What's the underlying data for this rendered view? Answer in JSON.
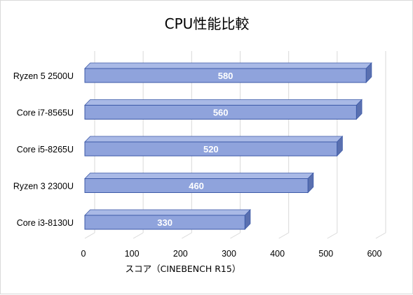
{
  "chart_data": {
    "type": "bar",
    "orientation": "horizontal",
    "style": "3d",
    "title": "CPU性能比較",
    "xlabel": "スコア（CINEBENCH R15）",
    "ylabel": "",
    "categories": [
      "Ryzen 5 2500U",
      "Core i7-8565U",
      "Core i5-8265U",
      "Ryzen 3 2300U",
      "Core i3-8130U"
    ],
    "values": [
      580,
      560,
      520,
      460,
      330
    ],
    "data_labels": [
      "580",
      "560",
      "520",
      "460",
      "330"
    ],
    "xlim": [
      0,
      600
    ],
    "x_ticks": [
      "0",
      "100",
      "200",
      "300",
      "400",
      "500",
      "600"
    ],
    "grid": true,
    "legend": "none",
    "colors": {
      "bar_front": "#8fa3dc",
      "bar_top": "#a9b9e6",
      "bar_side": "#5a70b0",
      "bar_edge": "#3d5aa8",
      "grid": "#d9d9d9"
    }
  }
}
